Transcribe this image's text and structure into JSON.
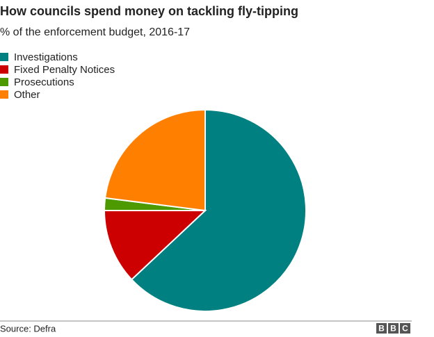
{
  "chart_data": {
    "type": "pie",
    "title": "How councils spend money on tackling fly-tipping",
    "subtitle": "% of the enforcement budget, 2016-17",
    "categories": [
      "Investigations",
      "Fixed Penalty Notices",
      "Prosecutions",
      "Other"
    ],
    "values": [
      63,
      12,
      2,
      23
    ],
    "colors": [
      "#008080",
      "#cc0000",
      "#4d9900",
      "#ff7f00"
    ]
  },
  "footer": {
    "source": "Source: Defra",
    "logo": [
      "B",
      "B",
      "C"
    ]
  }
}
